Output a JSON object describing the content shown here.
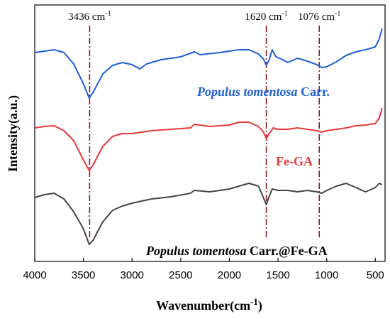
{
  "chart_data": {
    "type": "line",
    "xlabel": "Wavenumber(cm",
    "xlabel_sup": "-1",
    "xlabel_close": ")",
    "ylabel": "Intensity(a.u.)",
    "xlim": [
      4000,
      400
    ],
    "x_reversed": true,
    "y_ticks_shown": false,
    "x_ticks": [
      4000,
      3500,
      3000,
      2500,
      2000,
      1500,
      1000,
      500
    ],
    "annotations": [
      {
        "x": 3436,
        "text": "3436 cm",
        "sup": "-1"
      },
      {
        "x": 1620,
        "text": "1620 cm",
        "sup": "-1"
      },
      {
        "x": 1076,
        "text": "1076 cm",
        "sup": "-1"
      }
    ],
    "reference_line_color": "#8B1A1A",
    "series": [
      {
        "name": "Populus tomentosa Carr.",
        "name_italic": "Populus tomentosa",
        "name_rest": " Carr.",
        "color": "#1f5fd6",
        "points": [
          [
            4000,
            74
          ],
          [
            3900,
            72
          ],
          [
            3800,
            70
          ],
          [
            3700,
            74
          ],
          [
            3600,
            90
          ],
          [
            3500,
            118
          ],
          [
            3440,
            138
          ],
          [
            3400,
            130
          ],
          [
            3300,
            104
          ],
          [
            3200,
            92
          ],
          [
            3100,
            88
          ],
          [
            3000,
            91
          ],
          [
            2920,
            97
          ],
          [
            2850,
            90
          ],
          [
            2700,
            84
          ],
          [
            2500,
            80
          ],
          [
            2360,
            73
          ],
          [
            2300,
            77
          ],
          [
            2100,
            74
          ],
          [
            1900,
            70
          ],
          [
            1800,
            70
          ],
          [
            1700,
            76
          ],
          [
            1650,
            83
          ],
          [
            1620,
            92
          ],
          [
            1590,
            84
          ],
          [
            1560,
            70
          ],
          [
            1520,
            80
          ],
          [
            1450,
            84
          ],
          [
            1400,
            88
          ],
          [
            1300,
            82
          ],
          [
            1200,
            86
          ],
          [
            1100,
            91
          ],
          [
            1050,
            95
          ],
          [
            1000,
            94
          ],
          [
            900,
            87
          ],
          [
            800,
            78
          ],
          [
            700,
            73
          ],
          [
            600,
            70
          ],
          [
            500,
            66
          ],
          [
            460,
            55
          ],
          [
            430,
            40
          ]
        ]
      },
      {
        "name": "Fe-GA",
        "color": "#e8383d",
        "points": [
          [
            4000,
            180
          ],
          [
            3900,
            178
          ],
          [
            3800,
            177
          ],
          [
            3700,
            184
          ],
          [
            3600,
            198
          ],
          [
            3500,
            225
          ],
          [
            3440,
            240
          ],
          [
            3400,
            232
          ],
          [
            3300,
            206
          ],
          [
            3200,
            192
          ],
          [
            3100,
            188
          ],
          [
            3000,
            188
          ],
          [
            2900,
            186
          ],
          [
            2800,
            184
          ],
          [
            2600,
            182
          ],
          [
            2400,
            180
          ],
          [
            2360,
            175
          ],
          [
            2200,
            178
          ],
          [
            2000,
            176
          ],
          [
            1900,
            172
          ],
          [
            1800,
            172
          ],
          [
            1700,
            178
          ],
          [
            1650,
            186
          ],
          [
            1620,
            195
          ],
          [
            1590,
            188
          ],
          [
            1550,
            180
          ],
          [
            1500,
            182
          ],
          [
            1400,
            182
          ],
          [
            1300,
            180
          ],
          [
            1200,
            182
          ],
          [
            1100,
            184
          ],
          [
            1050,
            186
          ],
          [
            1000,
            184
          ],
          [
            900,
            182
          ],
          [
            800,
            180
          ],
          [
            700,
            177
          ],
          [
            600,
            176
          ],
          [
            500,
            174
          ],
          [
            460,
            166
          ],
          [
            430,
            152
          ]
        ]
      },
      {
        "name": "Populus tomentosa Carr.@Fe-GA",
        "name_italic": "Populus tomentosa",
        "name_rest": " Carr.@Fe-GA",
        "color": "#454545",
        "points": [
          [
            4000,
            278
          ],
          [
            3900,
            274
          ],
          [
            3800,
            272
          ],
          [
            3700,
            280
          ],
          [
            3600,
            298
          ],
          [
            3500,
            322
          ],
          [
            3440,
            344
          ],
          [
            3400,
            338
          ],
          [
            3300,
            312
          ],
          [
            3200,
            296
          ],
          [
            3100,
            290
          ],
          [
            3000,
            286
          ],
          [
            2900,
            283
          ],
          [
            2800,
            280
          ],
          [
            2600,
            277
          ],
          [
            2400,
            272
          ],
          [
            2360,
            268
          ],
          [
            2200,
            270
          ],
          [
            2000,
            266
          ],
          [
            1900,
            262
          ],
          [
            1800,
            258
          ],
          [
            1700,
            262
          ],
          [
            1660,
            275
          ],
          [
            1620,
            288
          ],
          [
            1600,
            280
          ],
          [
            1560,
            266
          ],
          [
            1500,
            268
          ],
          [
            1400,
            268
          ],
          [
            1300,
            270
          ],
          [
            1200,
            268
          ],
          [
            1100,
            270
          ],
          [
            1050,
            272
          ],
          [
            1000,
            268
          ],
          [
            900,
            262
          ],
          [
            800,
            258
          ],
          [
            700,
            264
          ],
          [
            600,
            270
          ],
          [
            500,
            264
          ],
          [
            460,
            258
          ],
          [
            430,
            260
          ]
        ]
      }
    ]
  }
}
